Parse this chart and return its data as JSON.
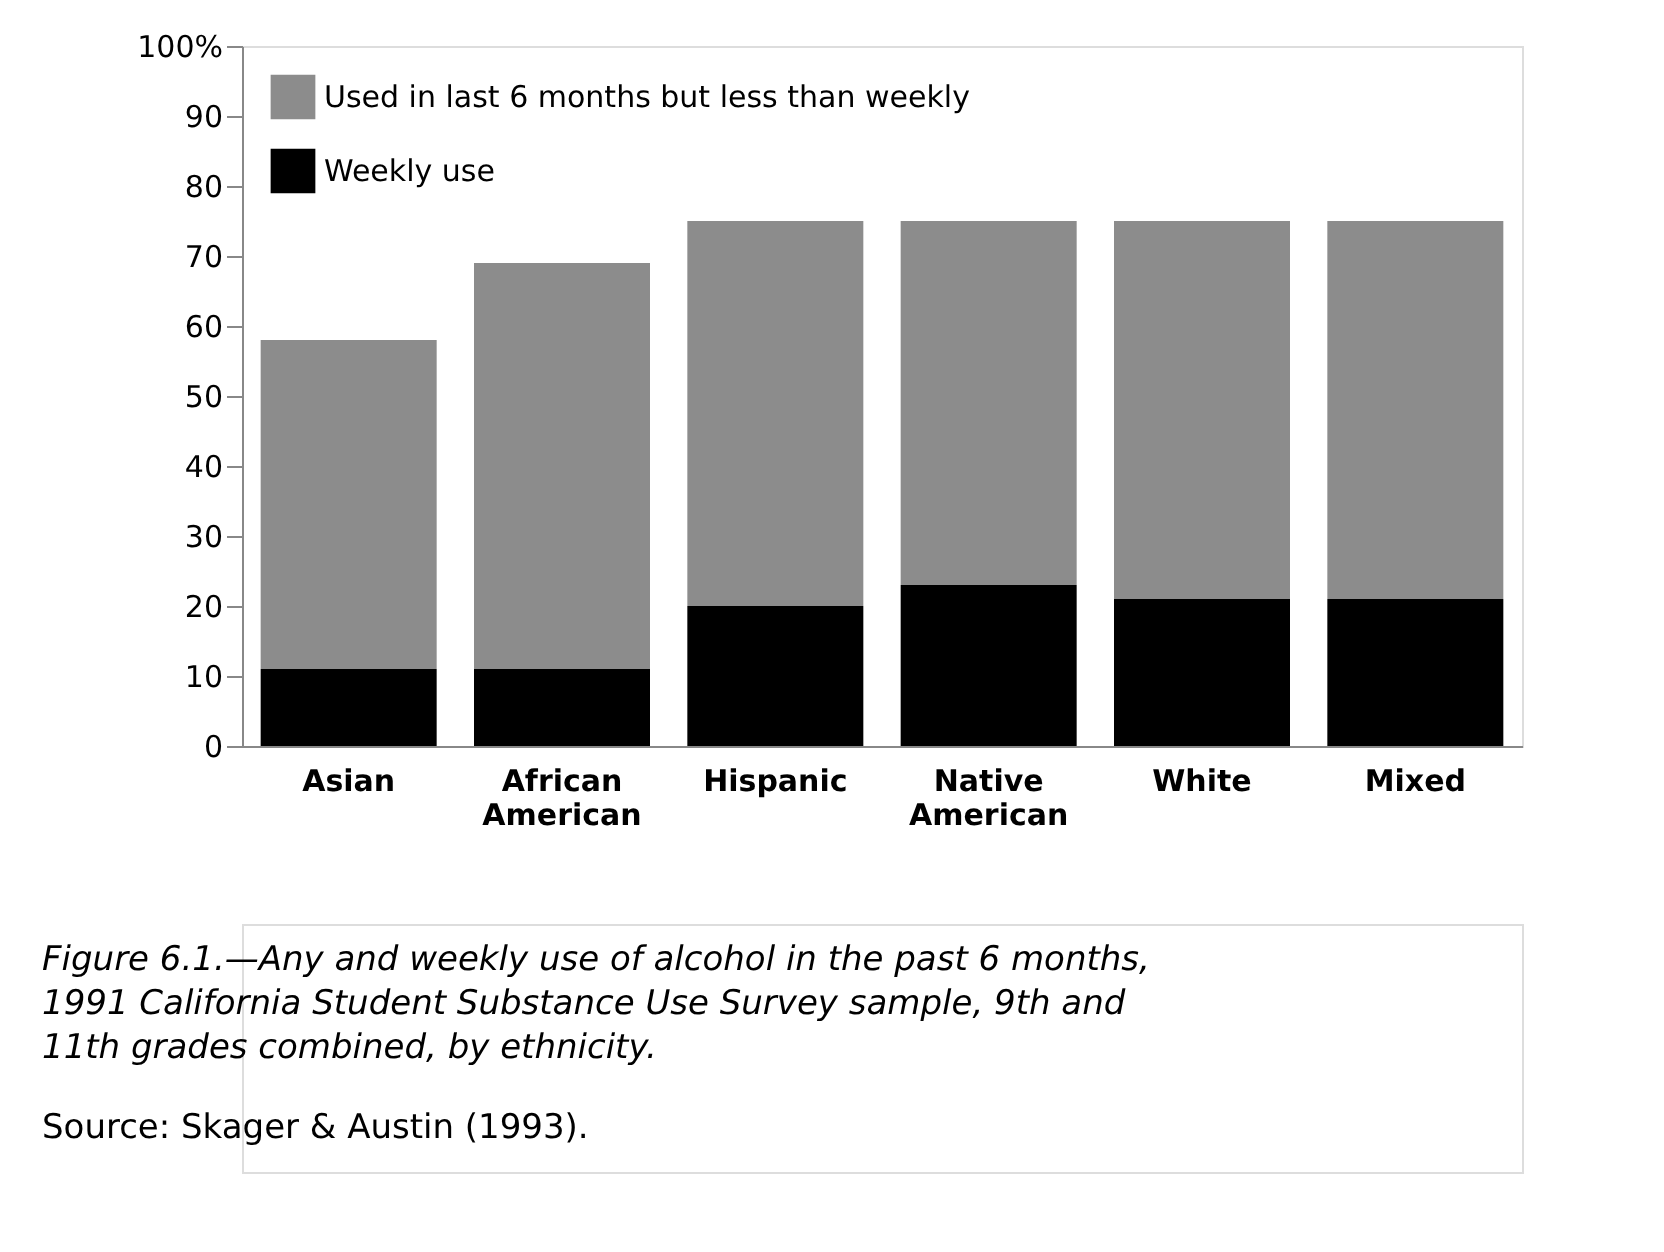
{
  "chart_data": {
    "type": "bar",
    "stacked": true,
    "title": "Figure 6.1.—Any and weekly use of alcohol in the past 6 months,\n1991 California Student Substance Use Survey sample, 9th and\n11th grades combined, by ethnicity.",
    "annotations": [
      "Source: Skager & Austin (1993)."
    ],
    "categories": [
      "Asian",
      "African American",
      "Hispanic",
      "Native American",
      "White",
      "Mixed"
    ],
    "series": [
      {
        "name": "Weekly use",
        "color": "#000000",
        "values": [
          11,
          11,
          20,
          23,
          21,
          21
        ]
      },
      {
        "name": "Used in last 6 months but less than weekly",
        "color": "#8c8c8c",
        "values": [
          47,
          58,
          55,
          52,
          54,
          54
        ]
      }
    ],
    "ylim": [
      0,
      100
    ],
    "yticks": [
      0,
      10,
      20,
      30,
      40,
      50,
      60,
      70,
      80,
      90,
      {
        "value": 100,
        "label": "100%"
      }
    ],
    "grid": false,
    "legend": "top left"
  }
}
